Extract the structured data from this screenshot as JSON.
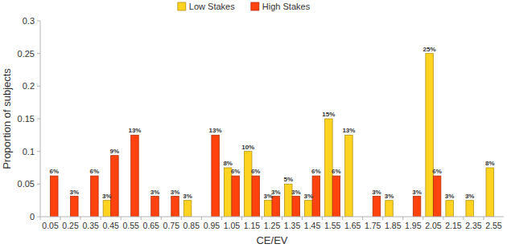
{
  "chart_data": {
    "type": "bar",
    "x_label": "CE/EV",
    "y_label": "Proportion of subjects",
    "categories": [
      "0.05",
      "0.25",
      "0.35",
      "0.45",
      "0.55",
      "0.65",
      "0.75",
      "0.85",
      "0.95",
      "1.05",
      "1.15",
      "1.25",
      "1.35",
      "1.45",
      "1.55",
      "1.65",
      "1.75",
      "1.85",
      "1.95",
      "2.05",
      "2.15",
      "2.35",
      "2.55"
    ],
    "series": [
      {
        "name": "Low Stakes",
        "color": "#ffd320",
        "values": [
          null,
          null,
          null,
          0.025,
          null,
          null,
          null,
          0.025,
          null,
          0.075,
          0.1,
          0.025,
          0.05,
          0.025,
          0.15,
          0.125,
          null,
          0.025,
          null,
          0.25,
          0.025,
          0.025,
          0.075
        ],
        "value_labels": [
          null,
          null,
          null,
          "3%",
          null,
          null,
          null,
          "3%",
          null,
          "8%",
          "10%",
          "3%",
          "5%",
          "3%",
          "15%",
          "13%",
          null,
          "3%",
          null,
          "25%",
          "3%",
          "3%",
          "8%"
        ]
      },
      {
        "name": "High Stakes",
        "color": "#ff420e",
        "values": [
          0.0625,
          0.03125,
          0.0625,
          0.09375,
          0.125,
          0.03125,
          0.03125,
          null,
          0.125,
          0.0625,
          0.0625,
          0.03125,
          0.03125,
          0.0625,
          0.0625,
          null,
          0.03125,
          null,
          0.03125,
          0.0625,
          null,
          null,
          null
        ],
        "value_labels": [
          "6%",
          "3%",
          "6%",
          "9%",
          "13%",
          "3%",
          "3%",
          null,
          "13%",
          "6%",
          "6%",
          "3%",
          "3%",
          "6%",
          "6%",
          null,
          "3%",
          null,
          "3%",
          "6%",
          null,
          null,
          null
        ]
      }
    ],
    "ylim": [
      0,
      0.3
    ],
    "yticks": [
      0,
      0.05,
      0.1,
      0.15,
      0.2,
      0.25,
      0.3
    ],
    "grid": false,
    "legend": "top",
    "data_labels": true
  }
}
